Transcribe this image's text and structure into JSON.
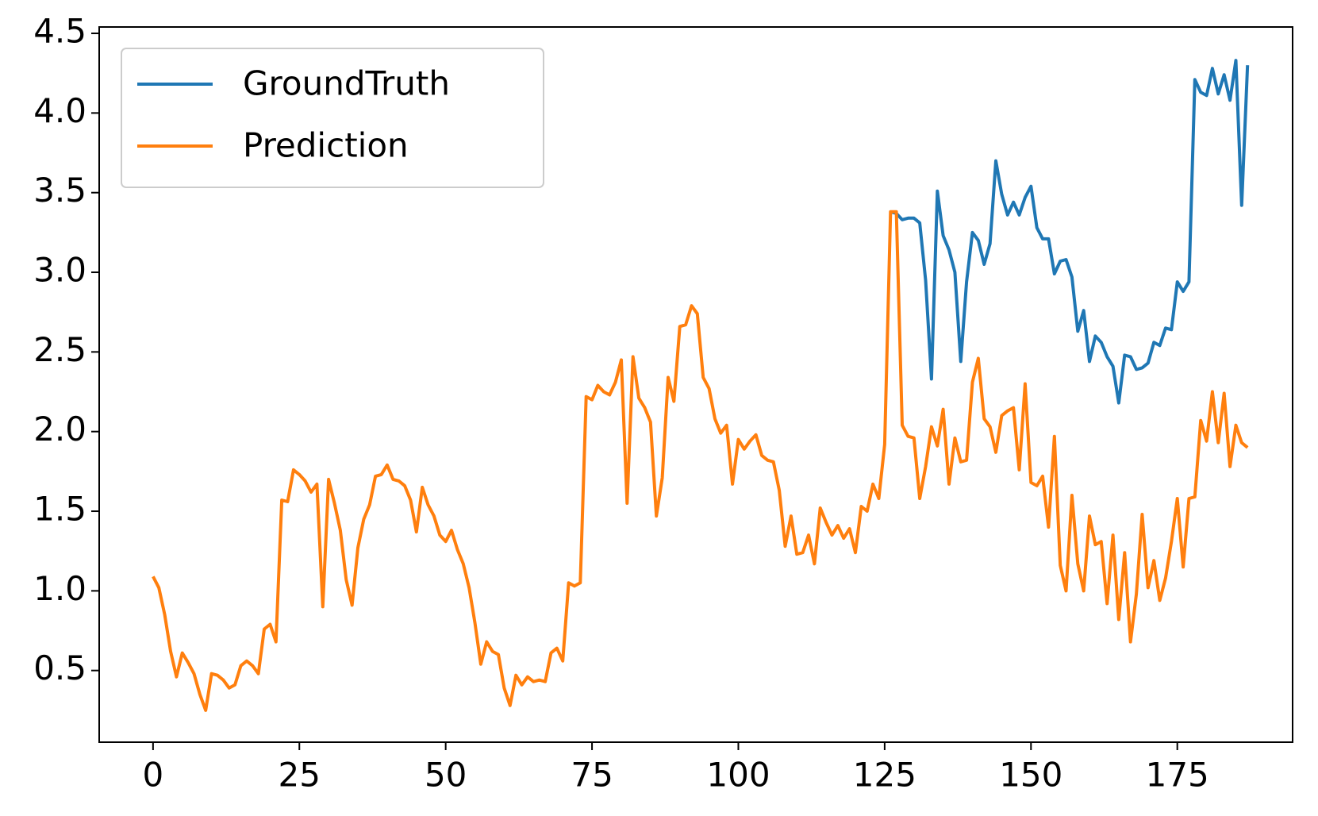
{
  "chart_data": {
    "type": "line",
    "x": [
      0,
      1,
      2,
      3,
      4,
      5,
      6,
      7,
      8,
      9,
      10,
      11,
      12,
      13,
      14,
      15,
      16,
      17,
      18,
      19,
      20,
      21,
      22,
      23,
      24,
      25,
      26,
      27,
      28,
      29,
      30,
      31,
      32,
      33,
      34,
      35,
      36,
      37,
      38,
      39,
      40,
      41,
      42,
      43,
      44,
      45,
      46,
      47,
      48,
      49,
      50,
      51,
      52,
      53,
      54,
      55,
      56,
      57,
      58,
      59,
      60,
      61,
      62,
      63,
      64,
      65,
      66,
      67,
      68,
      69,
      70,
      71,
      72,
      73,
      74,
      75,
      76,
      77,
      78,
      79,
      80,
      81,
      82,
      83,
      84,
      85,
      86,
      87,
      88,
      89,
      90,
      91,
      92,
      93,
      94,
      95,
      96,
      97,
      98,
      99,
      100,
      101,
      102,
      103,
      104,
      105,
      106,
      107,
      108,
      109,
      110,
      111,
      112,
      113,
      114,
      115,
      116,
      117,
      118,
      119,
      120,
      121,
      122,
      123,
      124,
      125,
      126,
      127,
      128,
      129,
      130,
      131,
      132,
      133,
      134,
      135,
      136,
      137,
      138,
      139,
      140,
      141,
      142,
      143,
      144,
      145,
      146,
      147,
      148,
      149,
      150,
      151,
      152,
      153,
      154,
      155,
      156,
      157,
      158,
      159,
      160,
      161,
      162,
      163,
      164,
      165,
      166,
      167,
      168,
      169,
      170,
      171,
      172,
      173,
      174,
      175,
      176,
      177,
      178,
      179,
      180,
      181,
      182,
      183,
      184,
      185,
      186,
      187
    ],
    "series": [
      {
        "name": "GroundTruth",
        "color": "#1f77b4",
        "values": [
          null,
          null,
          null,
          null,
          null,
          null,
          null,
          null,
          null,
          null,
          null,
          null,
          null,
          null,
          null,
          null,
          null,
          null,
          null,
          null,
          null,
          null,
          null,
          null,
          null,
          null,
          null,
          null,
          null,
          null,
          null,
          null,
          null,
          null,
          null,
          null,
          null,
          null,
          null,
          null,
          null,
          null,
          null,
          null,
          null,
          null,
          null,
          null,
          null,
          null,
          null,
          null,
          null,
          null,
          null,
          null,
          null,
          null,
          null,
          null,
          null,
          null,
          null,
          null,
          null,
          null,
          null,
          null,
          null,
          null,
          null,
          null,
          null,
          null,
          null,
          null,
          null,
          null,
          null,
          null,
          null,
          null,
          null,
          null,
          null,
          null,
          null,
          null,
          null,
          null,
          null,
          null,
          null,
          null,
          null,
          null,
          null,
          null,
          null,
          null,
          null,
          null,
          null,
          null,
          null,
          null,
          null,
          null,
          null,
          null,
          null,
          null,
          null,
          null,
          null,
          null,
          null,
          null,
          null,
          null,
          null,
          null,
          null,
          null,
          null,
          null,
          3.38,
          3.37,
          3.33,
          3.34,
          3.34,
          3.31,
          2.95,
          2.33,
          3.51,
          3.23,
          3.14,
          3.0,
          2.44,
          2.94,
          3.25,
          3.2,
          3.05,
          3.18,
          3.7,
          3.49,
          3.36,
          3.44,
          3.36,
          3.47,
          3.54,
          3.28,
          3.21,
          3.21,
          2.99,
          3.07,
          3.08,
          2.97,
          2.63,
          2.76,
          2.44,
          2.6,
          2.56,
          2.47,
          2.41,
          2.18,
          2.48,
          2.47,
          2.39,
          2.4,
          2.43,
          2.56,
          2.54,
          2.65,
          2.64,
          2.94,
          2.88,
          2.94,
          4.21,
          4.13,
          4.11,
          4.28,
          4.12,
          4.24,
          4.08,
          4.33,
          3.42,
          4.3
        ]
      },
      {
        "name": "Prediction",
        "color": "#ff7f0e",
        "values": [
          1.09,
          1.02,
          0.85,
          0.62,
          0.46,
          0.61,
          0.55,
          0.48,
          0.35,
          0.25,
          0.48,
          0.47,
          0.44,
          0.39,
          0.41,
          0.53,
          0.56,
          0.53,
          0.48,
          0.76,
          0.79,
          0.68,
          1.57,
          1.56,
          1.76,
          1.73,
          1.69,
          1.62,
          1.67,
          0.9,
          1.7,
          1.55,
          1.38,
          1.07,
          0.91,
          1.27,
          1.45,
          1.54,
          1.72,
          1.73,
          1.79,
          1.7,
          1.69,
          1.66,
          1.57,
          1.37,
          1.65,
          1.54,
          1.47,
          1.35,
          1.31,
          1.38,
          1.26,
          1.17,
          1.02,
          0.8,
          0.54,
          0.68,
          0.62,
          0.6,
          0.39,
          0.28,
          0.47,
          0.41,
          0.46,
          0.43,
          0.44,
          0.43,
          0.61,
          0.64,
          0.56,
          1.05,
          1.03,
          1.05,
          2.22,
          2.2,
          2.29,
          2.25,
          2.23,
          2.31,
          2.45,
          1.55,
          2.47,
          2.21,
          2.15,
          2.06,
          1.47,
          1.71,
          2.34,
          2.19,
          2.66,
          2.67,
          2.79,
          2.74,
          2.34,
          2.27,
          2.08,
          1.99,
          2.04,
          1.67,
          1.95,
          1.89,
          1.94,
          1.98,
          1.85,
          1.82,
          1.81,
          1.63,
          1.28,
          1.47,
          1.23,
          1.24,
          1.35,
          1.17,
          1.52,
          1.43,
          1.35,
          1.41,
          1.33,
          1.39,
          1.24,
          1.53,
          1.5,
          1.67,
          1.58,
          1.92,
          3.38,
          3.38,
          2.04,
          1.97,
          1.96,
          1.58,
          1.78,
          2.03,
          1.91,
          2.14,
          1.67,
          1.96,
          1.81,
          1.82,
          2.31,
          2.46,
          2.08,
          2.03,
          1.87,
          2.1,
          2.13,
          2.15,
          1.76,
          2.3,
          1.68,
          1.66,
          1.72,
          1.4,
          1.97,
          1.16,
          1.0,
          1.6,
          1.17,
          1.0,
          1.47,
          1.29,
          1.31,
          0.92,
          1.35,
          0.82,
          1.24,
          0.68,
          0.98,
          1.48,
          1.02,
          1.19,
          0.94,
          1.08,
          1.31,
          1.58,
          1.15,
          1.58,
          1.59,
          2.07,
          1.94,
          2.25,
          1.93,
          2.24,
          1.78,
          2.04,
          1.93,
          1.9
        ]
      }
    ],
    "xlim": [
      -9.2,
      194.7
    ],
    "ylim": [
      0.05,
      4.54
    ],
    "xticks": [
      0,
      25,
      50,
      75,
      100,
      125,
      150,
      175
    ],
    "yticks": [
      0.5,
      {
        "value": 1,
        "label": "1.0"
      },
      1.5,
      {
        "value": 2,
        "label": "2.0"
      },
      2.5,
      {
        "value": 3,
        "label": "3.0"
      },
      3.5,
      {
        "value": 4,
        "label": "4.0"
      },
      4.5
    ],
    "grid": false,
    "legend": "upper left"
  }
}
